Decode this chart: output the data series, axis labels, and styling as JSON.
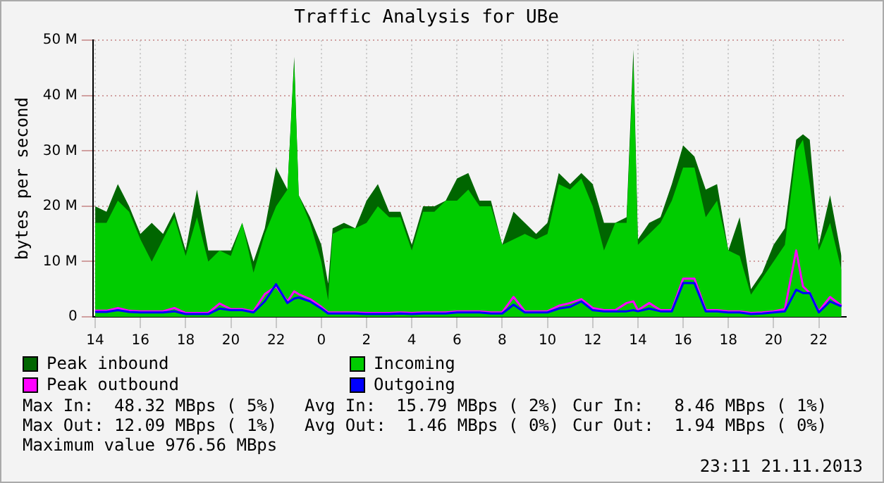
{
  "chart_data": {
    "type": "area",
    "title": "Traffic Analysis for UBe",
    "ylabel": "bytes per second",
    "x": [
      "2013-11-20T14:00",
      "2013-11-20T14:30",
      "2013-11-20T15:00",
      "2013-11-20T15:30",
      "2013-11-20T16:00",
      "2013-11-20T16:30",
      "2013-11-20T17:00",
      "2013-11-20T17:30",
      "2013-11-20T18:00",
      "2013-11-20T18:30",
      "2013-11-20T19:00",
      "2013-11-20T19:30",
      "2013-11-20T20:00",
      "2013-11-20T20:30",
      "2013-11-20T21:00",
      "2013-11-20T21:30",
      "2013-11-20T22:00",
      "2013-11-20T22:30",
      "2013-11-20T22:48",
      "2013-11-20T23:00",
      "2013-11-20T23:30",
      "2013-11-21T00:00",
      "2013-11-21T00:18",
      "2013-11-21T00:30",
      "2013-11-21T01:00",
      "2013-11-21T01:30",
      "2013-11-21T02:00",
      "2013-11-21T02:30",
      "2013-11-21T03:00",
      "2013-11-21T03:30",
      "2013-11-21T04:00",
      "2013-11-21T04:30",
      "2013-11-21T05:00",
      "2013-11-21T05:30",
      "2013-11-21T06:00",
      "2013-11-21T06:30",
      "2013-11-21T07:00",
      "2013-11-21T07:30",
      "2013-11-21T08:00",
      "2013-11-21T08:30",
      "2013-11-21T09:00",
      "2013-11-21T09:30",
      "2013-11-21T10:00",
      "2013-11-21T10:30",
      "2013-11-21T11:00",
      "2013-11-21T11:30",
      "2013-11-21T12:00",
      "2013-11-21T12:30",
      "2013-11-21T13:00",
      "2013-11-21T13:30",
      "2013-11-21T13:48",
      "2013-11-21T14:00",
      "2013-11-21T14:30",
      "2013-11-21T15:00",
      "2013-11-21T15:30",
      "2013-11-21T16:00",
      "2013-11-21T16:30",
      "2013-11-21T17:00",
      "2013-11-21T17:30",
      "2013-11-21T18:00",
      "2013-11-21T18:30",
      "2013-11-21T19:00",
      "2013-11-21T19:30",
      "2013-11-21T20:00",
      "2013-11-21T20:30",
      "2013-11-21T21:00",
      "2013-11-21T21:18",
      "2013-11-21T21:36",
      "2013-11-21T22:00",
      "2013-11-21T22:30",
      "2013-11-21T23:00"
    ],
    "series": [
      {
        "name": "Peak inbound",
        "color": "#006600",
        "values": [
          20,
          19,
          24,
          20,
          15,
          17,
          15,
          19,
          12,
          23,
          12,
          12,
          12,
          17,
          10,
          16,
          27,
          23,
          47,
          22,
          18,
          13,
          6,
          16,
          17,
          16,
          21,
          24,
          19,
          19,
          13,
          20,
          20,
          21,
          25,
          26,
          21,
          21,
          13,
          19,
          17,
          15,
          17,
          26,
          24,
          26,
          24,
          17,
          17,
          18,
          48.3,
          14,
          17,
          18,
          24,
          31,
          29,
          23,
          24,
          12,
          18,
          5,
          8,
          13,
          16,
          32,
          33,
          32,
          13,
          22,
          11
        ]
      },
      {
        "name": "Incoming",
        "color": "#00cc00",
        "values": [
          17,
          17,
          21,
          19,
          14,
          10,
          14,
          18,
          11,
          18,
          10,
          12,
          11,
          17,
          8,
          15,
          20,
          23,
          46,
          22,
          17,
          10,
          3,
          15,
          16,
          16,
          17,
          20,
          18,
          18,
          12,
          19,
          19,
          21,
          21,
          23,
          20,
          20,
          13,
          14,
          15,
          14,
          15,
          24,
          23,
          25,
          20,
          12,
          17,
          17,
          46,
          13,
          15,
          17,
          21,
          27,
          27,
          18,
          21,
          12,
          11,
          4,
          7,
          10,
          13,
          30,
          32,
          24,
          12,
          17,
          8.5
        ]
      },
      {
        "name": "Peak outbound",
        "type": "line",
        "color": "#ff00ff",
        "values": [
          1.1,
          1.1,
          1.6,
          1.1,
          1.0,
          1.0,
          1.0,
          1.6,
          0.7,
          0.7,
          0.7,
          2.4,
          1.4,
          1.4,
          1.0,
          4.1,
          5.5,
          2.8,
          4.6,
          4.1,
          3.2,
          1.8,
          0.8,
          0.8,
          0.8,
          0.8,
          0.7,
          0.7,
          0.7,
          0.8,
          0.7,
          0.8,
          0.8,
          0.8,
          1.0,
          1.0,
          1.0,
          0.8,
          0.8,
          3.6,
          1.0,
          1.0,
          1.0,
          2.0,
          2.5,
          3.2,
          1.6,
          1.2,
          1.2,
          2.5,
          2.8,
          1.2,
          2.5,
          1.2,
          1.2,
          6.9,
          6.9,
          1.2,
          1.2,
          1.0,
          1.0,
          0.7,
          0.8,
          1.0,
          1.4,
          12,
          5.5,
          4.3,
          1.0,
          3.6,
          2.0
        ]
      },
      {
        "name": "Outgoing",
        "type": "line",
        "color": "#0000ff",
        "values": [
          0.9,
          0.9,
          1.2,
          0.9,
          0.8,
          0.8,
          0.8,
          1.0,
          0.5,
          0.5,
          0.5,
          1.5,
          1.2,
          1.2,
          0.8,
          2.8,
          5.9,
          2.5,
          3.3,
          3.5,
          2.8,
          1.5,
          0.6,
          0.6,
          0.6,
          0.6,
          0.5,
          0.5,
          0.5,
          0.6,
          0.5,
          0.6,
          0.6,
          0.6,
          0.8,
          0.8,
          0.8,
          0.6,
          0.6,
          2.2,
          0.8,
          0.8,
          0.8,
          1.5,
          1.8,
          2.8,
          1.2,
          1.0,
          1.0,
          1.0,
          1.2,
          1.0,
          1.5,
          1.0,
          1.0,
          6.1,
          6.1,
          1.0,
          1.0,
          0.8,
          0.8,
          0.5,
          0.6,
          0.8,
          1.0,
          4.9,
          4.3,
          4.3,
          0.8,
          2.8,
          1.9
        ]
      }
    ],
    "xlim": [
      "2013-11-20T13:54",
      "2013-11-21T23:12"
    ],
    "xticks": [
      {
        "value": "2013-11-20T14:00",
        "label": "14"
      },
      {
        "value": "2013-11-20T16:00",
        "label": "16"
      },
      {
        "value": "2013-11-20T18:00",
        "label": "18"
      },
      {
        "value": "2013-11-20T20:00",
        "label": "20"
      },
      {
        "value": "2013-11-20T22:00",
        "label": "22"
      },
      {
        "value": "2013-11-21T00:00",
        "label": "0"
      },
      {
        "value": "2013-11-21T02:00",
        "label": "2"
      },
      {
        "value": "2013-11-21T04:00",
        "label": "4"
      },
      {
        "value": "2013-11-21T06:00",
        "label": "6"
      },
      {
        "value": "2013-11-21T08:00",
        "label": "8"
      },
      {
        "value": "2013-11-21T10:00",
        "label": "10"
      },
      {
        "value": "2013-11-21T12:00",
        "label": "12"
      },
      {
        "value": "2013-11-21T14:00",
        "label": "14"
      },
      {
        "value": "2013-11-21T16:00",
        "label": "16"
      },
      {
        "value": "2013-11-21T18:00",
        "label": "18"
      },
      {
        "value": "2013-11-21T20:00",
        "label": "20"
      },
      {
        "value": "2013-11-21T22:00",
        "label": "22"
      }
    ],
    "ylim": [
      0,
      50
    ],
    "yticks": [
      0,
      {
        "value": 10,
        "label": "10 M"
      },
      {
        "value": 20,
        "label": "20 M"
      },
      {
        "value": 30,
        "label": "30 M"
      },
      {
        "value": 40,
        "label": "40 M"
      },
      {
        "value": 50,
        "label": "50 M"
      }
    ],
    "grid": true,
    "legend": "bottom",
    "marker": "none",
    "line_style": "solid",
    "annotations": [
      "Max In:  48.32 MBps ( 5%)",
      "Avg In:  15.79 MBps ( 2%)",
      "Cur In:   8.46 MBps ( 1%)",
      "Max Out: 12.09 MBps ( 1%)",
      "Avg Out:  1.46 MBps ( 0%)",
      "Cur Out:  1.94 MBps ( 0%)",
      "Maximum value 976.56 MBps",
      "23:11 21.11.2013"
    ]
  }
}
